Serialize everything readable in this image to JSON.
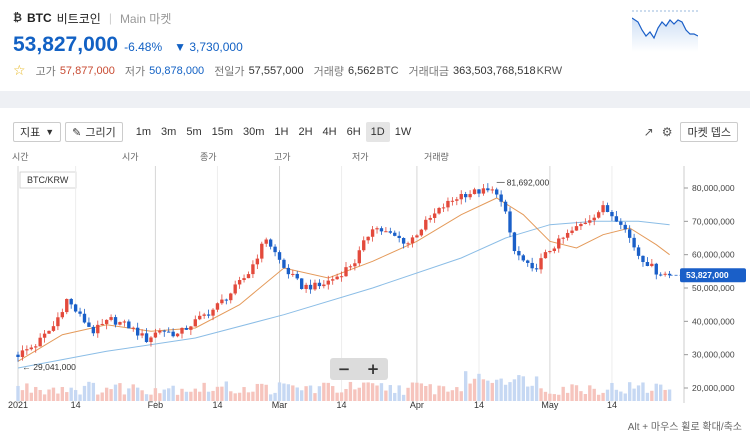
{
  "coin": {
    "symbol_glyph": "₿",
    "code": "BTC",
    "name_kr": "비트코인",
    "separator": "|",
    "market": "Main 마켓"
  },
  "price": {
    "current": "53,827,000",
    "change_pct": "-6.48%",
    "change_arrow": "▼",
    "change_amount": "3,730,000"
  },
  "stats": [
    {
      "label": "고가",
      "value": "57,877,000",
      "tone": "red"
    },
    {
      "label": "저가",
      "value": "50,878,000",
      "tone": "blue"
    },
    {
      "label": "전일가",
      "value": "57,557,000",
      "tone": ""
    },
    {
      "label": "거래량",
      "value": "6,562",
      "unit": "BTC",
      "tone": ""
    },
    {
      "label": "거래대금",
      "value": "363,503,768,518",
      "unit": "KRW",
      "tone": ""
    }
  ],
  "toolbar": {
    "indicator_label": "지표",
    "indicator_caret": "▼",
    "draw_label": "그리기",
    "intervals": [
      "1m",
      "3m",
      "5m",
      "15m",
      "30m",
      "1H",
      "2H",
      "4H",
      "6H",
      "1D",
      "1W"
    ],
    "active_interval": "1D",
    "market_depth_label": "마켓 뎁스"
  },
  "ohlc_labels": [
    "시간",
    "시가",
    "종가",
    "고가",
    "저가",
    "거래량"
  ],
  "pair_label": "BTC/KRW",
  "zoom": {
    "minus": "−",
    "plus": "+"
  },
  "hint": "Alt + 마우스 휠로 확대/축소",
  "colors": {
    "up": "#e34a3c",
    "down": "#1a5fc8",
    "accent": "#1261c4",
    "ma_fast": "#e49a5a",
    "ma_slow": "#8bbde6"
  },
  "chart_data": {
    "type": "candlestick",
    "yticks": [
      "80,000,000",
      "70,000,000",
      "60,000,000",
      "50,000,000",
      "40,000,000",
      "30,000,000",
      "20,000,000"
    ],
    "ylim": [
      20000000,
      83000000
    ],
    "xticks": [
      "2021",
      "14",
      "Feb",
      "14",
      "Mar",
      "14",
      "Apr",
      "14",
      "May",
      "14"
    ],
    "current_label": "53,827,000",
    "high_annotation": "81,692,000",
    "low_annotation": "29,041,000",
    "close_path": [
      [
        0,
        30.0
      ],
      [
        4,
        33.0
      ],
      [
        8,
        38.5
      ],
      [
        11,
        46.5
      ],
      [
        14,
        41.5
      ],
      [
        17,
        37.0
      ],
      [
        21,
        40.5
      ],
      [
        25,
        38.5
      ],
      [
        29,
        34.5
      ],
      [
        32,
        37.5
      ],
      [
        36,
        36.0
      ],
      [
        40,
        40.0
      ],
      [
        44,
        43.5
      ],
      [
        48,
        48.5
      ],
      [
        52,
        54.5
      ],
      [
        56,
        65.0
      ],
      [
        60,
        56.0
      ],
      [
        64,
        50.5
      ],
      [
        68,
        50.5
      ],
      [
        72,
        53.5
      ],
      [
        76,
        58.0
      ],
      [
        80,
        68.5
      ],
      [
        84,
        66.0
      ],
      [
        88,
        63.5
      ],
      [
        92,
        69.5
      ],
      [
        96,
        74.5
      ],
      [
        100,
        78.0
      ],
      [
        104,
        79.0
      ],
      [
        108,
        79.0
      ],
      [
        110,
        72.0
      ],
      [
        112,
        61.0
      ],
      [
        116,
        55.0
      ],
      [
        120,
        61.5
      ],
      [
        124,
        66.0
      ],
      [
        128,
        70.0
      ],
      [
        132,
        74.0
      ],
      [
        136,
        70.0
      ],
      [
        140,
        60.0
      ],
      [
        144,
        55.0
      ],
      [
        147,
        53.8
      ]
    ],
    "ma_fast": [
      [
        0,
        28
      ],
      [
        10,
        36
      ],
      [
        20,
        39
      ],
      [
        30,
        37
      ],
      [
        40,
        38
      ],
      [
        50,
        45
      ],
      [
        60,
        56
      ],
      [
        70,
        53
      ],
      [
        80,
        58
      ],
      [
        90,
        64
      ],
      [
        100,
        72
      ],
      [
        108,
        77
      ],
      [
        114,
        72
      ],
      [
        120,
        64
      ],
      [
        126,
        62
      ],
      [
        132,
        66
      ],
      [
        138,
        68
      ],
      [
        144,
        63
      ],
      [
        147,
        60
      ]
    ],
    "ma_slow": [
      [
        0,
        26
      ],
      [
        20,
        31
      ],
      [
        40,
        35
      ],
      [
        60,
        42
      ],
      [
        80,
        50
      ],
      [
        100,
        59
      ],
      [
        110,
        65
      ],
      [
        120,
        69
      ],
      [
        130,
        70
      ],
      [
        140,
        70
      ],
      [
        147,
        69
      ]
    ]
  }
}
